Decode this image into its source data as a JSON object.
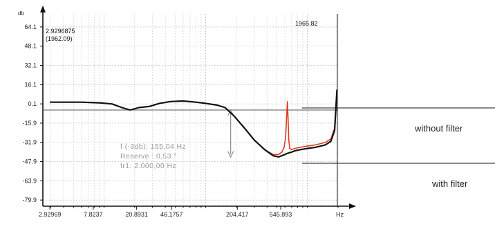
{
  "chart_data": {
    "type": "line",
    "y_unit": "db",
    "x_unit": "Hz",
    "x_scale": "log",
    "y_ticks": [
      "64.1",
      "48.1",
      "32.1",
      "16.1",
      "0.1",
      "-15.9",
      "-31.9",
      "-47.9",
      "-63.9",
      "-79.9"
    ],
    "y_tick_values": [
      64.1,
      48.1,
      32.1,
      16.1,
      0.1,
      -15.9,
      -31.9,
      -47.9,
      -63.9,
      -79.9
    ],
    "x_ticks": [
      "2.92969",
      "7.8237",
      "20.8931",
      "46.1757",
      "204.417",
      "545.893"
    ],
    "x_tick_values": [
      2.92969,
      7.8237,
      20.8931,
      46.1757,
      204.417,
      545.893
    ],
    "xlim": [
      2.5,
      2000
    ],
    "ylim": [
      -85,
      75
    ],
    "grid": true,
    "cursor_readout": {
      "value": "2.9296875",
      "secondary": "(1962.09)"
    },
    "marker_label": "1965.82",
    "marker_x": 1965.82,
    "info_box": {
      "line1": "f (-3db):    155,04 Hz",
      "line2": "Reserve :    0,53 °",
      "line3": "fr1: 2.000,00 Hz"
    },
    "reference_level": -5,
    "series": [
      {
        "name": "without filter",
        "color": "#e03a1e",
        "x": [
          2.93,
          4,
          6,
          9,
          12,
          15,
          18,
          22,
          28,
          35,
          45,
          60,
          80,
          100,
          130,
          155,
          190,
          240,
          300,
          380,
          460,
          520,
          560,
          590,
          610,
          625,
          635,
          645,
          655,
          670,
          700,
          750,
          850,
          1000,
          1200,
          1500,
          1700,
          1850,
          1950
        ],
        "y": [
          1.5,
          1.5,
          1.5,
          1.0,
          0.0,
          -3.0,
          -5.0,
          -3.0,
          -2.0,
          0.5,
          2.0,
          2.5,
          1.5,
          0.5,
          -1.0,
          -3.0,
          -10.0,
          -20.0,
          -30.0,
          -38.0,
          -42.0,
          -42.0,
          -40.0,
          -36.0,
          -28.0,
          -10.0,
          2.0,
          -12.0,
          -30.0,
          -37.0,
          -38.0,
          -37.0,
          -36.0,
          -35.0,
          -34.0,
          -32.0,
          -29.0,
          -20.0,
          12.0
        ]
      },
      {
        "name": "with filter",
        "color": "#111111",
        "x": [
          2.93,
          4,
          6,
          9,
          12,
          15,
          18,
          22,
          28,
          35,
          45,
          60,
          80,
          100,
          130,
          155,
          190,
          240,
          300,
          380,
          460,
          520,
          560,
          600,
          640,
          700,
          750,
          850,
          1000,
          1200,
          1500,
          1700,
          1850,
          1950
        ],
        "y": [
          1.5,
          1.5,
          1.5,
          1.0,
          0.0,
          -3.0,
          -5.0,
          -3.0,
          -2.0,
          0.5,
          2.0,
          2.5,
          1.5,
          0.5,
          -1.0,
          -3.0,
          -10.0,
          -20.0,
          -30.0,
          -38.0,
          -43.0,
          -44.0,
          -43.0,
          -42.0,
          -41.0,
          -40.0,
          -39.0,
          -38.0,
          -37.0,
          -36.0,
          -34.0,
          -31.0,
          -22.0,
          12.0
        ]
      }
    ]
  }
}
